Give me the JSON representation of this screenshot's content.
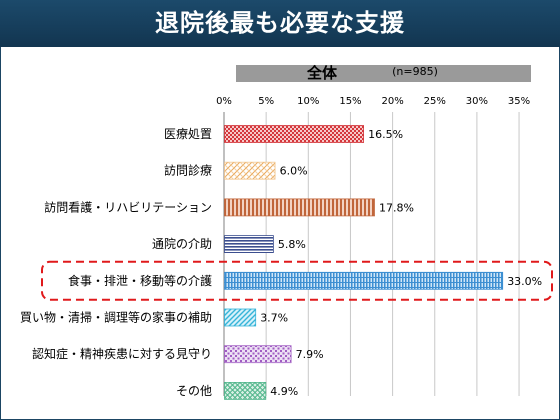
{
  "page": {
    "title": "退院後最も必要な支援"
  },
  "chart_data": {
    "type": "bar",
    "orientation": "horizontal",
    "group_label": "全体",
    "sample_note": "(n=985)",
    "categories": [
      "医療処置",
      "訪問診療",
      "訪問看護・リハビリテーション",
      "通院の介助",
      "食事・排泄・移動等の介護",
      "買い物・清掃・調理等の家事の補助",
      "認知症・精神疾患に対する見守り",
      "その他"
    ],
    "values": [
      16.5,
      6.0,
      17.8,
      5.8,
      33.0,
      3.7,
      7.9,
      4.9
    ],
    "value_labels": [
      "16.5%",
      "6.0%",
      "17.8%",
      "5.8%",
      "33.0%",
      "3.7%",
      "7.9%",
      "4.9%"
    ],
    "xlim": [
      0,
      35
    ],
    "xticks": [
      0,
      5,
      10,
      15,
      20,
      25,
      30,
      35
    ],
    "xtick_labels": [
      "0%",
      "5%",
      "10%",
      "15%",
      "20%",
      "25%",
      "30%",
      "35%"
    ],
    "grid": "vertical",
    "highlighted_category": "食事・排泄・移動等の介護",
    "highlight_color": "#e0191b",
    "bar_colors": [
      "#d4373c",
      "#f2c68f",
      "#c0653a",
      "#3c4f8f",
      "#3d8fd2",
      "#35b4d8",
      "#a05cc2",
      "#4fb58a"
    ]
  }
}
